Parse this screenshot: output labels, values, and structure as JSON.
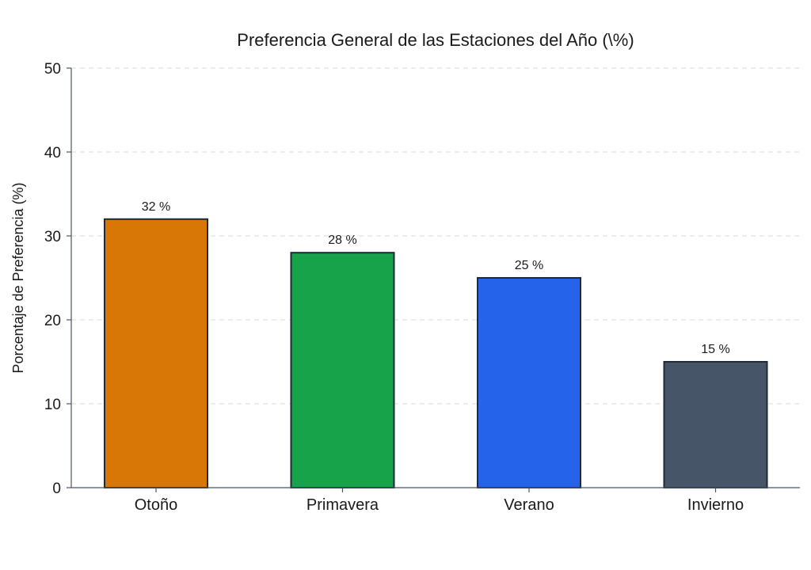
{
  "chart_data": {
    "type": "bar",
    "title": "Preferencia General de las Estaciones del Año (\\%)",
    "xlabel": "",
    "ylabel": "Porcentaje de Preferencia (%)",
    "ylim": [
      0,
      50
    ],
    "yticks": [
      "0",
      "10",
      "20",
      "30",
      "40",
      "50"
    ],
    "grid": "horizontal dashed",
    "categories": [
      "Otoño",
      "Primavera",
      "Verano",
      "Invierno"
    ],
    "values": [
      32,
      28,
      25,
      15
    ],
    "value_labels": [
      "32 %",
      "28 %",
      "25 %",
      "15 %"
    ],
    "colors": [
      "#d97706",
      "#16a34a",
      "#2563eb",
      "#475569"
    ]
  }
}
